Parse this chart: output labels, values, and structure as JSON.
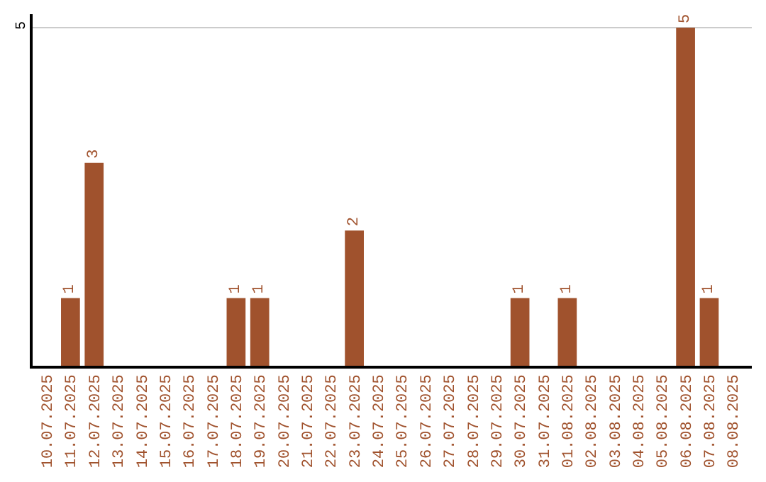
{
  "chart_data": {
    "type": "bar",
    "categories": [
      "10.07.2025",
      "11.07.2025",
      "12.07.2025",
      "13.07.2025",
      "14.07.2025",
      "15.07.2025",
      "16.07.2025",
      "17.07.2025",
      "18.07.2025",
      "19.07.2025",
      "20.07.2025",
      "21.07.2025",
      "22.07.2025",
      "23.07.2025",
      "24.07.2025",
      "25.07.2025",
      "26.07.2025",
      "27.07.2025",
      "28.07.2025",
      "29.07.2025",
      "30.07.2025",
      "31.07.2025",
      "01.08.2025",
      "02.08.2025",
      "03.08.2025",
      "04.08.2025",
      "05.08.2025",
      "06.08.2025",
      "07.08.2025",
      "08.08.2025"
    ],
    "values": [
      0,
      1,
      3,
      0,
      0,
      0,
      0,
      0,
      1,
      1,
      0,
      0,
      0,
      2,
      0,
      0,
      0,
      0,
      0,
      0,
      1,
      0,
      1,
      0,
      0,
      0,
      0,
      5,
      1,
      0
    ],
    "value_labels": [
      null,
      "1",
      "3",
      null,
      null,
      null,
      null,
      null,
      "1",
      "1",
      null,
      null,
      null,
      "2",
      null,
      null,
      null,
      null,
      null,
      null,
      "1",
      null,
      "1",
      null,
      null,
      null,
      null,
      "5",
      "1",
      null
    ],
    "color": "#a0522d",
    "ylim": [
      0,
      5.2
    ],
    "yticks": [
      5
    ],
    "grid": "y",
    "legend": false
  }
}
